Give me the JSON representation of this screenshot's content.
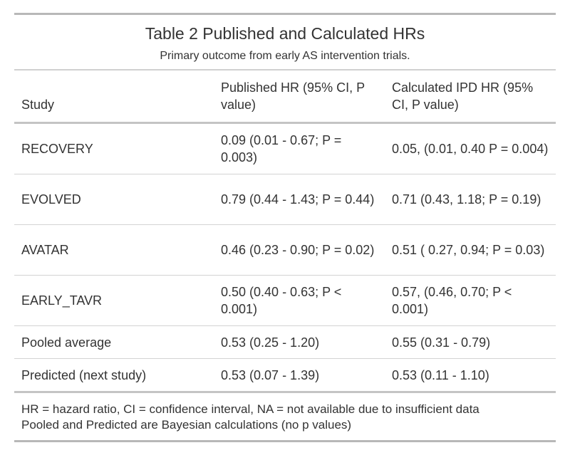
{
  "title": "Table 2 Published and Calculated HRs",
  "subtitle": "Primary outcome from early AS intervention trials.",
  "columns": [
    "Study",
    "Published HR (95% CI, P value)",
    "Calculated IPD HR (95% CI, P value)"
  ],
  "rows": [
    {
      "study": "RECOVERY",
      "published": "0.09 (0.01 - 0.67; P = 0.003)",
      "calculated": "0.05, (0.01, 0.40 P = 0.004)"
    },
    {
      "study": "EVOLVED",
      "published": "0.79 (0.44 - 1.43; P = 0.44)",
      "calculated": "0.71 (0.43, 1.18; P = 0.19)"
    },
    {
      "study": "AVATAR",
      "published": "0.46 (0.23 - 0.90; P = 0.02)",
      "calculated": "0.51 ( 0.27, 0.94; P = 0.03)"
    },
    {
      "study": "EARLY_TAVR",
      "published": "0.50 (0.40 - 0.63; P < 0.001)",
      "calculated": "0.57, (0.46, 0.70; P < 0.001)"
    },
    {
      "study": "Pooled average",
      "published": "0.53 (0.25 - 1.20)",
      "calculated": "0.55 (0.31 - 0.79)"
    },
    {
      "study": "Predicted (next study)",
      "published": "0.53 (0.07 - 1.39)",
      "calculated": "0.53 (0.11 - 1.10)"
    }
  ],
  "footnotes": [
    "HR = hazard ratio, CI = confidence interval, NA = not available due to insufficient data",
    "Pooled and Predicted are Bayesian calculations (no p values)"
  ]
}
